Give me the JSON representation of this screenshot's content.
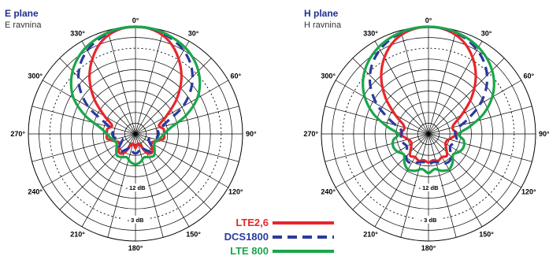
{
  "chart_data": [
    {
      "type": "polar-line",
      "title": "E plane",
      "subtitle": "E ravnina",
      "angle_unit": "deg",
      "radial_unit": "dB",
      "angle_labels": [
        "0°",
        "30°",
        "60°",
        "90°",
        "120°",
        "150°",
        "180°",
        "210°",
        "240°",
        "270°",
        "300°",
        "330°"
      ],
      "radial_labels": [
        "- 3 dB",
        "- 12 dB"
      ],
      "radial_range": [
        -30,
        0
      ],
      "series": [
        {
          "name": "LTE2,6",
          "color": "#e8262b",
          "dash": "solid",
          "angles": [
            0,
            10,
            20,
            30,
            40,
            50,
            60,
            70,
            80,
            90,
            100,
            110,
            120,
            130,
            140,
            150,
            160,
            170,
            180,
            190,
            200,
            210,
            220,
            230,
            240,
            250,
            260,
            270,
            280,
            290,
            300,
            310,
            320,
            330,
            340,
            350
          ],
          "values": [
            0,
            -0.5,
            -2.4,
            -5.8,
            -10,
            -15,
            -20,
            -23,
            -22,
            -22,
            -22,
            -24,
            -25,
            -24,
            -23,
            -24,
            -27,
            -27,
            -26,
            -27,
            -27,
            -24,
            -23,
            -24,
            -25,
            -24,
            -22,
            -22,
            -22,
            -23,
            -20,
            -15,
            -10,
            -5.8,
            -2.4,
            -0.5
          ]
        },
        {
          "name": "DCS1800",
          "color": "#2b3aa0",
          "dash": "dashed",
          "angles": [
            0,
            10,
            20,
            30,
            40,
            50,
            60,
            70,
            80,
            90,
            100,
            110,
            120,
            130,
            140,
            150,
            160,
            170,
            180,
            190,
            200,
            210,
            220,
            230,
            240,
            250,
            260,
            270,
            280,
            290,
            300,
            310,
            320,
            330,
            340,
            350
          ],
          "values": [
            0,
            -0.3,
            -1.4,
            -3,
            -5.6,
            -9.5,
            -14.7,
            -21,
            -23.5,
            -23.5,
            -24,
            -26,
            -25.5,
            -24,
            -23.5,
            -25,
            -26,
            -25,
            -24.5,
            -25,
            -26,
            -25,
            -23.5,
            -24,
            -25.5,
            -26,
            -24,
            -23.5,
            -23.5,
            -21,
            -14.7,
            -9.5,
            -5.6,
            -3,
            -1.4,
            -0.3
          ]
        },
        {
          "name": "LTE 800",
          "color": "#1aa64a",
          "dash": "solid",
          "angles": [
            0,
            10,
            20,
            30,
            40,
            50,
            60,
            70,
            80,
            90,
            100,
            110,
            120,
            130,
            140,
            150,
            160,
            170,
            180,
            190,
            200,
            210,
            220,
            230,
            240,
            250,
            260,
            270,
            280,
            290,
            300,
            310,
            320,
            330,
            340,
            350
          ],
          "values": [
            0,
            -0.2,
            -1,
            -2.1,
            -3.9,
            -6.5,
            -10,
            -15,
            -20,
            -22,
            -23,
            -24,
            -24,
            -23,
            -22,
            -22.5,
            -23,
            -22,
            -21.5,
            -22,
            -23,
            -22.5,
            -22,
            -23,
            -24,
            -24,
            -23,
            -22,
            -20,
            -15,
            -10,
            -6.5,
            -3.9,
            -2.1,
            -1,
            -0.2
          ]
        }
      ]
    },
    {
      "type": "polar-line",
      "title": "H plane",
      "subtitle": "H ravnina",
      "angle_unit": "deg",
      "radial_unit": "dB",
      "angle_labels": [
        "0°",
        "30°",
        "60°",
        "90°",
        "120°",
        "150°",
        "180°",
        "210°",
        "240°",
        "270°",
        "300°",
        "330°"
      ],
      "radial_labels": [
        "- 3 dB",
        "- 12 dB"
      ],
      "radial_range": [
        -30,
        0
      ],
      "series": [
        {
          "name": "LTE2,6",
          "color": "#e8262b",
          "dash": "solid",
          "angles": [
            0,
            10,
            20,
            30,
            40,
            50,
            60,
            70,
            80,
            90,
            100,
            110,
            120,
            130,
            140,
            150,
            160,
            170,
            180,
            190,
            200,
            210,
            220,
            230,
            240,
            250,
            260,
            270,
            280,
            290,
            300,
            310,
            320,
            330,
            340,
            350
          ],
          "values": [
            0,
            -0.5,
            -2.2,
            -5.3,
            -9.4,
            -14.3,
            -19.2,
            -22.5,
            -23,
            -22,
            -23.5,
            -24.5,
            -24.5,
            -23.5,
            -22,
            -22.5,
            -22,
            -22.5,
            -22,
            -22.5,
            -22,
            -22.5,
            -22,
            -23.5,
            -24.5,
            -24.5,
            -23.5,
            -22,
            -23,
            -22.5,
            -19.2,
            -14.3,
            -9.4,
            -5.3,
            -2.2,
            -0.5
          ]
        },
        {
          "name": "DCS1800",
          "color": "#2b3aa0",
          "dash": "dashed",
          "angles": [
            0,
            10,
            20,
            30,
            40,
            50,
            60,
            70,
            80,
            90,
            100,
            110,
            120,
            130,
            140,
            150,
            160,
            170,
            180,
            190,
            200,
            210,
            220,
            230,
            240,
            250,
            260,
            270,
            280,
            290,
            300,
            310,
            320,
            330,
            340,
            350
          ],
          "values": [
            0,
            -0.3,
            -1.2,
            -2.8,
            -5.2,
            -8.7,
            -13.3,
            -18.5,
            -22,
            -22.5,
            -22,
            -22.5,
            -23,
            -22,
            -20.5,
            -20.5,
            -21.5,
            -22,
            -21.5,
            -22,
            -21.5,
            -20.5,
            -20.5,
            -22,
            -23,
            -22.5,
            -22,
            -22.5,
            -22,
            -18.5,
            -13.3,
            -8.7,
            -5.2,
            -2.8,
            -1.2,
            -0.3
          ]
        },
        {
          "name": "LTE 800",
          "color": "#1aa64a",
          "dash": "solid",
          "angles": [
            0,
            10,
            20,
            30,
            40,
            50,
            60,
            70,
            80,
            90,
            100,
            110,
            120,
            130,
            140,
            150,
            160,
            170,
            180,
            190,
            200,
            210,
            220,
            230,
            240,
            250,
            260,
            270,
            280,
            290,
            300,
            310,
            320,
            330,
            340,
            350
          ],
          "values": [
            0,
            -0.2,
            -0.9,
            -2,
            -3.7,
            -6.1,
            -9.4,
            -13.6,
            -18.3,
            -21.5,
            -20,
            -19.5,
            -20,
            -21,
            -19.5,
            -18.5,
            -19,
            -20,
            -19,
            -20,
            -19,
            -18.5,
            -19.5,
            -21,
            -20,
            -19.5,
            -20,
            -21.5,
            -18.3,
            -13.6,
            -9.4,
            -6.1,
            -3.7,
            -2,
            -0.9,
            -0.2
          ]
        }
      ]
    }
  ],
  "legend": [
    {
      "label": "LTE2,6",
      "color": "#e8262b",
      "dash": "solid"
    },
    {
      "label": "DCS1800",
      "color": "#2b3aa0",
      "dash": "dashed"
    },
    {
      "label": "LTE 800",
      "color": "#1aa64a",
      "dash": "solid"
    }
  ]
}
